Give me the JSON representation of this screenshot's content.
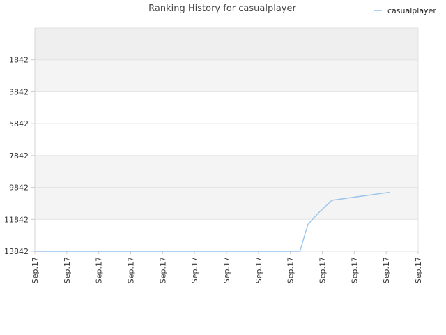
{
  "chart_data": {
    "type": "line",
    "title": "Ranking History for casualplayer",
    "xlabel": "",
    "ylabel": "",
    "y_inverted": true,
    "ylim": [
      -158,
      13842
    ],
    "y_ticks": [
      1842,
      3842,
      5842,
      7842,
      9842,
      11842,
      13842
    ],
    "x_tick_labels": [
      "Sep.17",
      "Sep.17",
      "Sep.17",
      "Sep.17",
      "Sep.17",
      "Sep.17",
      "Sep.17",
      "Sep.17",
      "Sep.17",
      "Sep.17",
      "Sep.17",
      "Sep.17",
      "Sep.17"
    ],
    "grid": true,
    "legend_position": "top-right",
    "series": [
      {
        "name": "casualplayer",
        "color": "#99c4ec",
        "points": [
          [
            0,
            13842
          ],
          [
            8.3,
            13842
          ],
          [
            8.55,
            12150
          ],
          [
            8.9,
            11400
          ],
          [
            9.3,
            10650
          ],
          [
            10.0,
            10450
          ],
          [
            11.1,
            10150
          ]
        ]
      }
    ],
    "band_colors": [
      "#efefef",
      "#f4f4f4",
      "#ffffff",
      "#ffffff",
      "#f4f4f4",
      "#f4f4f4",
      "#ffffff"
    ]
  }
}
